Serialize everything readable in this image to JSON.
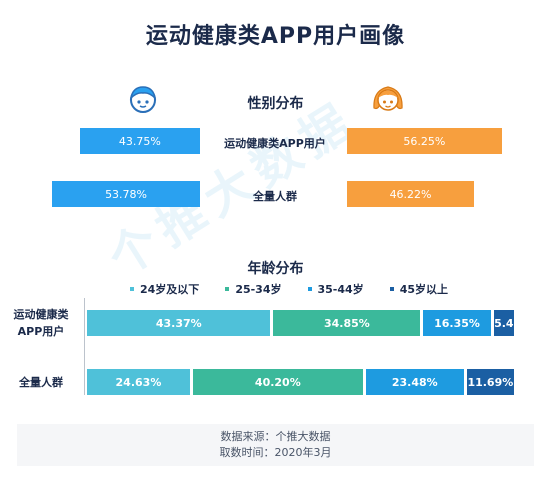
{
  "title": "运动健康类APP用户画像",
  "gender": {
    "section_title": "性别分布",
    "rows": [
      {
        "label": "运动健康类APP用户",
        "male": 43.75,
        "female": 56.25,
        "male_text": "43.75%",
        "female_text": "56.25%"
      },
      {
        "label": "全量人群",
        "male": 53.78,
        "female": 46.22,
        "male_text": "53.78%",
        "female_text": "46.22%"
      }
    ]
  },
  "age": {
    "section_title": "年龄分布",
    "legend": [
      "24岁及以下",
      "25-34岁",
      "35-44岁",
      "45岁以上"
    ],
    "colors": [
      "#4fc1d9",
      "#3bb99b",
      "#1e9be0",
      "#1b5fa3"
    ],
    "rows": [
      {
        "label_line1": "运动健康类",
        "label_line2": "APP用户",
        "values": [
          43.37,
          34.85,
          16.35,
          5.43
        ],
        "texts": [
          "43.37%",
          "34.85%",
          "16.35%",
          "5.4"
        ]
      },
      {
        "label_line1": "全量人群",
        "label_line2": "",
        "values": [
          24.63,
          40.2,
          23.48,
          11.69
        ],
        "texts": [
          "24.63%",
          "40.20%",
          "23.48%",
          "11.69%"
        ]
      }
    ]
  },
  "chart_data": [
    {
      "type": "bar",
      "title": "性别分布",
      "categories": [
        "运动健康类APP用户",
        "全量人群"
      ],
      "series": [
        {
          "values": [
            43.75,
            53.78
          ]
        },
        {
          "values": [
            56.25,
            46.22
          ]
        }
      ]
    },
    {
      "type": "bar",
      "title": "年龄分布",
      "categories": [
        "运动健康类APP用户",
        "全量人群"
      ],
      "series": [
        {
          "name": "24岁及以下",
          "values": [
            43.37,
            24.63
          ]
        },
        {
          "name": "25-34岁",
          "values": [
            34.85,
            40.2
          ]
        },
        {
          "name": "35-44岁",
          "values": [
            16.35,
            23.48
          ]
        },
        {
          "name": "45岁以上",
          "values": [
            5.43,
            11.69
          ]
        }
      ]
    }
  ],
  "watermark": "个推大数据",
  "footer": {
    "line1": "数据来源：个推大数据",
    "line2": "取数时间：2020年3月"
  }
}
